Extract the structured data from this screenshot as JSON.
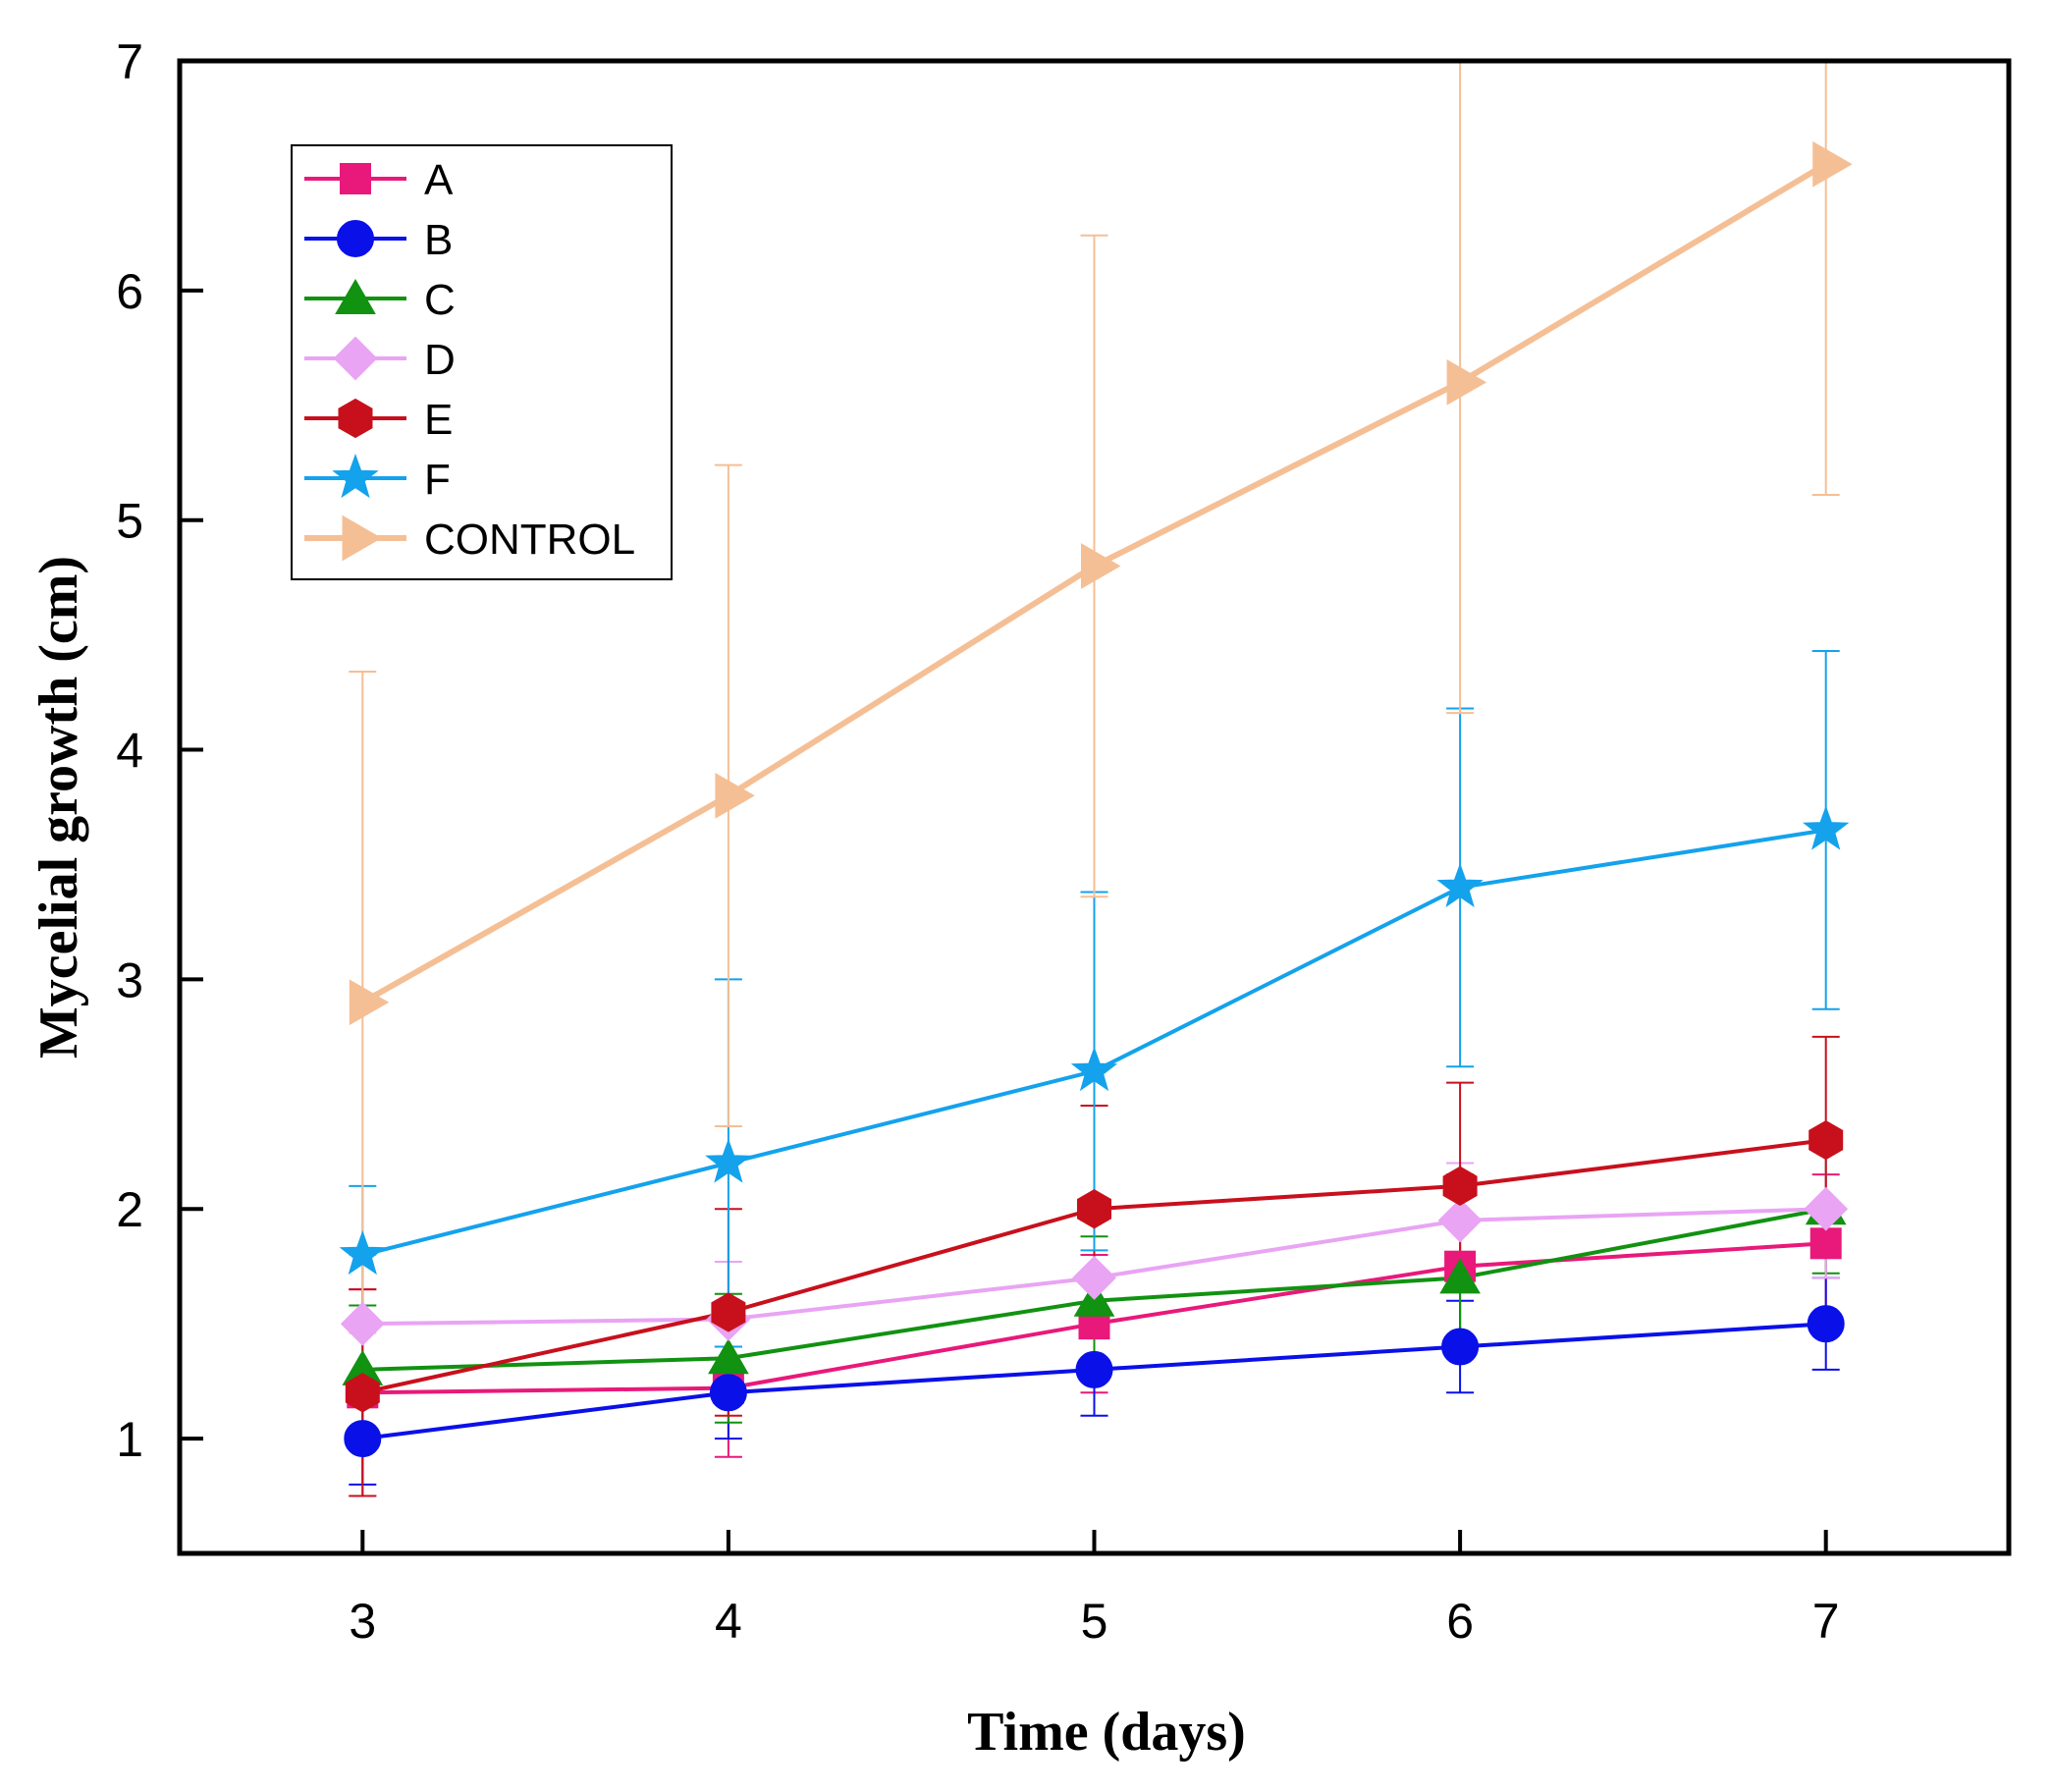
{
  "chart_data": {
    "type": "line",
    "title": "",
    "xlabel": "Time (days)",
    "ylabel": "Mycelial growth (cm)",
    "x": [
      3,
      4,
      5,
      6,
      7
    ],
    "xlim": [
      2.5,
      7.5
    ],
    "ylim": [
      0.5,
      7
    ],
    "xticks": [
      3,
      4,
      5,
      6,
      7
    ],
    "yticks": [
      1,
      2,
      3,
      4,
      5,
      6,
      7
    ],
    "grid": false,
    "legend_position": "top-left",
    "series": [
      {
        "name": "A",
        "marker": "square",
        "color": "#e8197a",
        "values": [
          1.2,
          1.22,
          1.5,
          1.75,
          1.85
        ],
        "errors": [
          0.45,
          0.3,
          0.3,
          0.4,
          0.3
        ]
      },
      {
        "name": "B",
        "marker": "circle",
        "color": "#0a10e8",
        "values": [
          1.0,
          1.2,
          1.3,
          1.4,
          1.5
        ],
        "errors": [
          0.2,
          0.2,
          0.2,
          0.2,
          0.2
        ]
      },
      {
        "name": "C",
        "marker": "triangle",
        "color": "#119211",
        "values": [
          1.3,
          1.35,
          1.6,
          1.7,
          2.0
        ],
        "errors": [
          0.28,
          0.28,
          0.28,
          0.28,
          0.28
        ]
      },
      {
        "name": "D",
        "marker": "diamond",
        "color": "#e9a4f4",
        "values": [
          1.5,
          1.52,
          1.7,
          1.95,
          2.0
        ],
        "errors": [
          0.3,
          0.25,
          0.25,
          0.25,
          0.3
        ]
      },
      {
        "name": "E",
        "marker": "hexagon",
        "color": "#c8101c",
        "values": [
          1.2,
          1.55,
          2.0,
          2.1,
          2.3
        ],
        "errors": [
          0.45,
          0.45,
          0.45,
          0.45,
          0.45
        ]
      },
      {
        "name": "F",
        "marker": "star",
        "color": "#14a2ec",
        "values": [
          1.8,
          2.2,
          2.6,
          3.4,
          3.65
        ],
        "errors": [
          0.3,
          0.8,
          0.78,
          0.78,
          0.78
        ]
      },
      {
        "name": "CONTROL",
        "marker": "triangle-right",
        "color": "#f5bf95",
        "values": [
          2.9,
          3.8,
          4.8,
          5.6,
          6.55
        ],
        "errors": [
          1.44,
          1.44,
          1.44,
          1.44,
          1.44
        ]
      }
    ]
  }
}
